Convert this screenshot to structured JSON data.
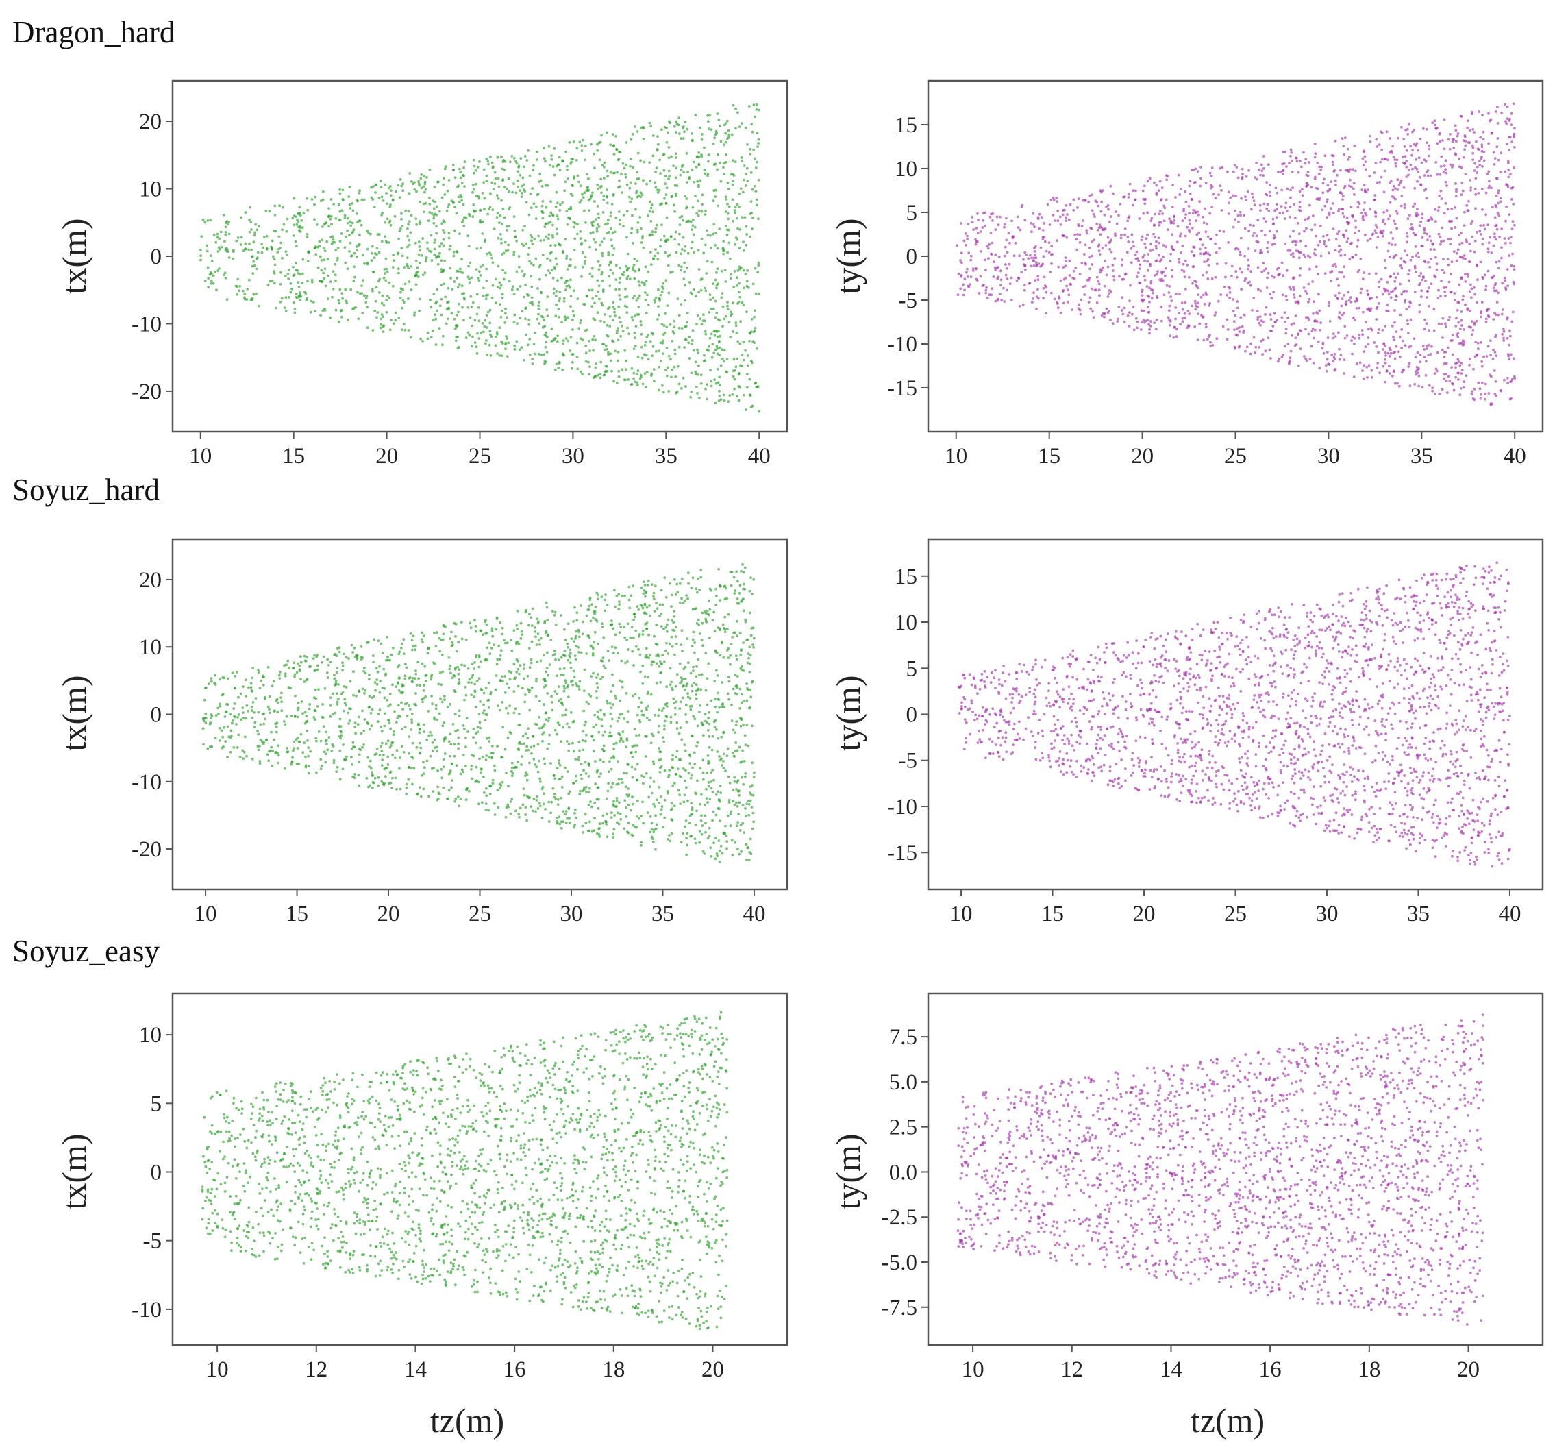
{
  "figure": {
    "point_colors": {
      "tx": "#2ca02c",
      "ty": "#a335a8"
    },
    "frame_color": "#555555"
  },
  "chart_data": [
    {
      "id": "dragon-hard-tx",
      "section": "Dragon_hard",
      "type": "scatter",
      "xlabel": "",
      "ylabel": "tx(m)",
      "xlim": [
        8.5,
        41.5
      ],
      "ylim": [
        -26,
        26
      ],
      "xticks": [
        10,
        15,
        20,
        25,
        30,
        35,
        40
      ],
      "xtick_labels": [
        "10",
        "15",
        "20",
        "25",
        "30",
        "35",
        "40"
      ],
      "yticks": [
        -20,
        -10,
        0,
        10,
        20
      ],
      "ytick_labels": [
        "-20",
        "-10",
        "0",
        "10",
        "20"
      ],
      "distribution": {
        "x_range": [
          10,
          40
        ],
        "half_width_slope": 0.58,
        "point_count": 2400,
        "color": "#2ca02c"
      }
    },
    {
      "id": "dragon-hard-ty",
      "section": "Dragon_hard",
      "type": "scatter",
      "xlabel": "",
      "ylabel": "ty(m)",
      "xlim": [
        8.5,
        41.5
      ],
      "ylim": [
        -20,
        20
      ],
      "xticks": [
        10,
        15,
        20,
        25,
        30,
        35,
        40
      ],
      "xtick_labels": [
        "10",
        "15",
        "20",
        "25",
        "30",
        "35",
        "40"
      ],
      "yticks": [
        -15,
        -10,
        -5,
        0,
        5,
        10,
        15
      ],
      "ytick_labels": [
        "-15",
        "-10",
        "-5",
        "0",
        "5",
        "10",
        "15"
      ],
      "distribution": {
        "x_range": [
          10,
          40
        ],
        "half_width_slope": 0.44,
        "point_count": 2400,
        "color": "#a335a8"
      }
    },
    {
      "id": "soyuz-hard-tx",
      "section": "Soyuz_hard",
      "type": "scatter",
      "xlabel": "",
      "ylabel": "tx(m)",
      "xlim": [
        8.2,
        41.8
      ],
      "ylim": [
        -26,
        26
      ],
      "xticks": [
        10,
        15,
        20,
        25,
        30,
        35,
        40
      ],
      "xtick_labels": [
        "10",
        "15",
        "20",
        "25",
        "30",
        "35",
        "40"
      ],
      "yticks": [
        -20,
        -10,
        0,
        10,
        20
      ],
      "ytick_labels": [
        "-20",
        "-10",
        "0",
        "10",
        "20"
      ],
      "distribution": {
        "x_range": [
          9.8,
          40
        ],
        "half_width_slope": 0.58,
        "point_count": 2400,
        "color": "#2ca02c"
      }
    },
    {
      "id": "soyuz-hard-ty",
      "section": "Soyuz_hard",
      "type": "scatter",
      "xlabel": "",
      "ylabel": "ty(m)",
      "xlim": [
        8.2,
        41.8
      ],
      "ylim": [
        -19,
        19
      ],
      "xticks": [
        10,
        15,
        20,
        25,
        30,
        35,
        40
      ],
      "xtick_labels": [
        "10",
        "15",
        "20",
        "25",
        "30",
        "35",
        "40"
      ],
      "yticks": [
        -15,
        -10,
        -5,
        0,
        5,
        10,
        15
      ],
      "ytick_labels": [
        "-15",
        "-10",
        "-5",
        "0",
        "5",
        "10",
        "15"
      ],
      "distribution": {
        "x_range": [
          9.8,
          40
        ],
        "half_width_slope": 0.43,
        "point_count": 2400,
        "color": "#a335a8"
      }
    },
    {
      "id": "soyuz-easy-tx",
      "section": "Soyuz_easy",
      "type": "scatter",
      "xlabel": "tz(m)",
      "ylabel": "tx(m)",
      "xlim": [
        9.1,
        21.5
      ],
      "ylim": [
        -12.6,
        13
      ],
      "xticks": [
        10,
        12,
        14,
        16,
        18,
        20
      ],
      "xtick_labels": [
        "10",
        "12",
        "14",
        "16",
        "18",
        "20"
      ],
      "yticks": [
        -10,
        -5,
        0,
        5,
        10
      ],
      "ytick_labels": [
        "-10",
        "-5",
        "0",
        "5",
        "10"
      ],
      "distribution": {
        "x_range": [
          9.7,
          20.3
        ],
        "half_width_slope": 0.58,
        "point_count": 2400,
        "color": "#2ca02c"
      }
    },
    {
      "id": "soyuz-easy-ty",
      "section": "Soyuz_easy",
      "type": "scatter",
      "xlabel": "tz(m)",
      "ylabel": "ty(m)",
      "xlim": [
        9.1,
        21.5
      ],
      "ylim": [
        -9.6,
        9.9
      ],
      "xticks": [
        10,
        12,
        14,
        16,
        18,
        20
      ],
      "xtick_labels": [
        "10",
        "12",
        "14",
        "16",
        "18",
        "20"
      ],
      "yticks": [
        -7.5,
        -5.0,
        -2.5,
        0.0,
        2.5,
        5.0,
        7.5
      ],
      "ytick_labels": [
        "-7.5",
        "-5.0",
        "-2.5",
        "0.0",
        "2.5",
        "5.0",
        "7.5"
      ],
      "distribution": {
        "x_range": [
          9.7,
          20.3
        ],
        "half_width_slope": 0.43,
        "point_count": 2400,
        "color": "#a335a8"
      }
    }
  ],
  "sections": [
    {
      "title": "Dragon_hard"
    },
    {
      "title": "Soyuz_hard"
    },
    {
      "title": "Soyuz_easy"
    }
  ]
}
